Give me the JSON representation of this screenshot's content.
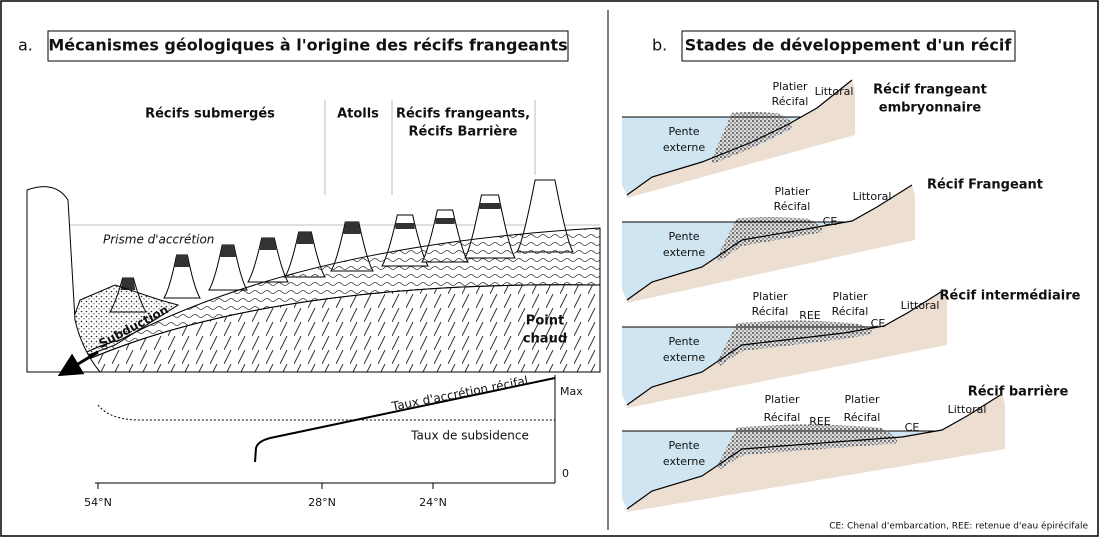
{
  "panel_a": {
    "label": "a.",
    "title": "Mécanismes géologiques à l'origine des récifs frangeants",
    "zones": [
      [
        "Récifs submergés"
      ],
      [
        "Atolls"
      ],
      [
        "Récifs frangeants,",
        "Récifs Barrière"
      ]
    ],
    "prism": "Prisme d'accrétion",
    "subduction": "Subduction",
    "hotspot": [
      "Point",
      "chaud"
    ],
    "graph": {
      "accretion": "Taux d'accrétion récifal",
      "subsidence": "Taux de subsidence",
      "max": "Max",
      "zero": "0",
      "xticks": [
        "54°N",
        "28°N",
        "24°N"
      ]
    }
  },
  "panel_b": {
    "label": "b.",
    "title": "Stades de développement d'un récif",
    "stages": [
      {
        "name": [
          "Récif frangeant",
          "embryonnaire"
        ],
        "labels": [
          [
            "Platier",
            "Récifal"
          ],
          [
            "Littoral"
          ],
          [
            "Pente",
            "externe"
          ]
        ]
      },
      {
        "name": [
          "Récif Frangeant"
        ],
        "labels": [
          [
            "Platier",
            "Récifal"
          ],
          [
            "CE"
          ],
          [
            "Littoral"
          ],
          [
            "Pente",
            "externe"
          ]
        ]
      },
      {
        "name": [
          "Récif intermédiaire"
        ],
        "labels": [
          [
            "Platier",
            "Récifal"
          ],
          [
            "REE"
          ],
          [
            "Platier",
            "Récifal"
          ],
          [
            "CE"
          ],
          [
            "Littoral"
          ],
          [
            "Pente",
            "externe"
          ]
        ]
      },
      {
        "name": [
          "Récif barrière"
        ],
        "labels": [
          [
            "Platier",
            "Récifal"
          ],
          [
            "REE"
          ],
          [
            "Platier",
            "Récifal"
          ],
          [
            "CE"
          ],
          [
            "Littoral"
          ],
          [
            "Pente",
            "externe"
          ]
        ]
      }
    ],
    "footnote": "CE: Chenal d'embarcation, REE: retenue d'eau épirécifale"
  }
}
